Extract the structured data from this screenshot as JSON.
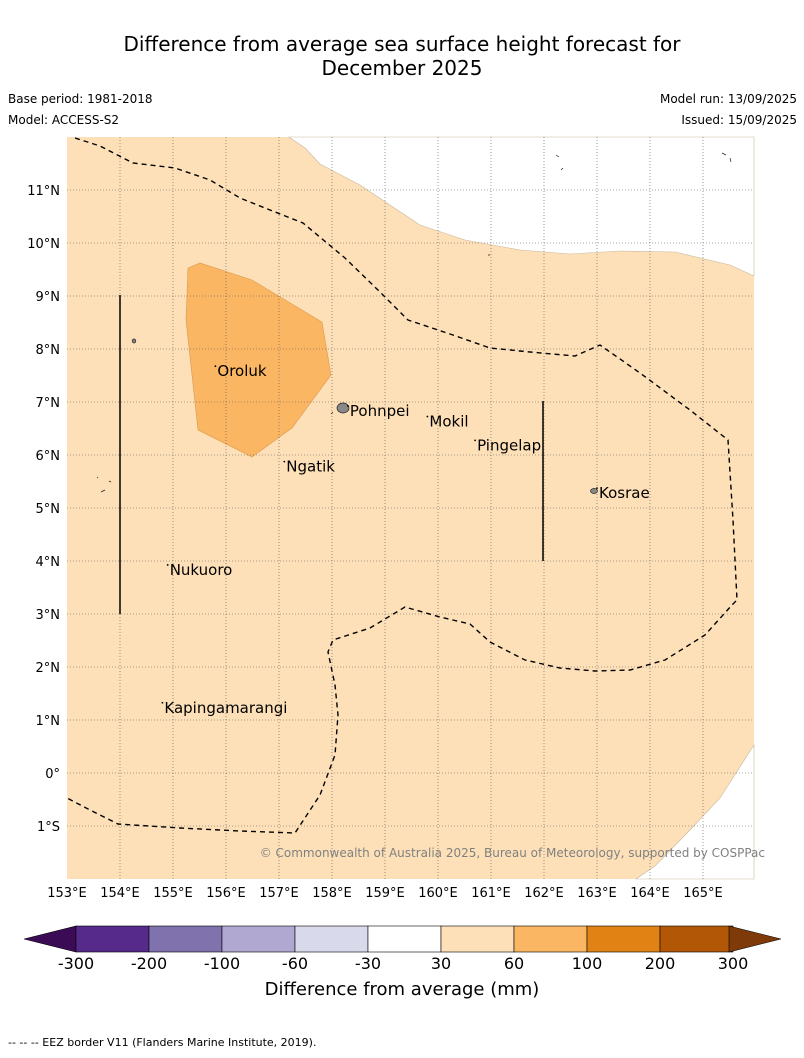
{
  "title_line1": "Difference from average sea surface height forecast for",
  "title_line2": "December 2025",
  "base_period": "Base period: 1981-2018",
  "model": "Model: ACCESS-S2",
  "model_run": "Model run: 13/09/2025",
  "issued": "Issued: 15/09/2025",
  "map": {
    "lat_labels": [
      "11°N",
      "10°N",
      "9°N",
      "8°N",
      "7°N",
      "6°N",
      "5°N",
      "4°N",
      "3°N",
      "2°N",
      "1°N",
      "0°",
      "1°S"
    ],
    "lon_labels": [
      "153°E",
      "154°E",
      "155°E",
      "156°E",
      "157°E",
      "158°E",
      "159°E",
      "160°E",
      "161°E",
      "162°E",
      "163°E",
      "164°E",
      "165°E"
    ],
    "places": [
      {
        "name": "Oroluk",
        "lon": 155.8,
        "lat": 7.6
      },
      {
        "name": "Pohnpei",
        "lon": 158.3,
        "lat": 6.85
      },
      {
        "name": "Mokil",
        "lon": 159.8,
        "lat": 6.65
      },
      {
        "name": "Pingelap",
        "lon": 160.7,
        "lat": 6.2
      },
      {
        "name": "Ngatik",
        "lon": 157.1,
        "lat": 5.8
      },
      {
        "name": "Kosrae",
        "lon": 163.0,
        "lat": 5.3
      },
      {
        "name": "Nukuoro",
        "lon": 154.9,
        "lat": 3.85
      },
      {
        "name": "Kapingamarangi",
        "lon": 154.8,
        "lat": 1.25
      }
    ],
    "copyright": "© Commonwealth of Australia 2025, Bureau of Meteorology, supported by COSPPac",
    "colors": {
      "sea_30_60": "#fde0b8",
      "sea_60_100": "#fab662",
      "land": "#888888"
    }
  },
  "colorbar": {
    "title": "Difference from average (mm)",
    "tick_labels": [
      "-300",
      "-200",
      "-100",
      "-60",
      "-30",
      "30",
      "60",
      "100",
      "200",
      "300"
    ],
    "colors": [
      "#552a8a",
      "#7f72ad",
      "#b0a8d1",
      "#d9d9ec",
      "#ffffff",
      "#fde0b8",
      "#fab662",
      "#e08314",
      "#b15706"
    ],
    "under_color": "#3b0b55",
    "over_color": "#7e3b09"
  },
  "footer": "-- -- -- EEZ border V11 (Flanders Marine Institute, 2019)."
}
